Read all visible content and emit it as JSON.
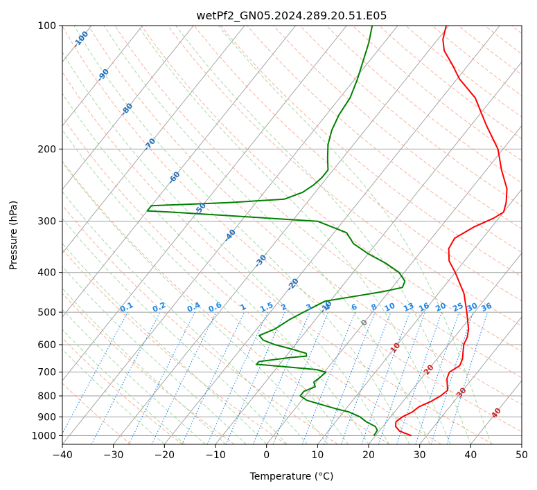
{
  "chart_data": {
    "type": "skew-t",
    "title": "wetPf2_GN05.2024.289.20.51.E05",
    "xlabel": "Temperature (°C)",
    "ylabel": "Pressure (hPa)",
    "xlim": [
      -40,
      50
    ],
    "ylim": [
      1050,
      100
    ],
    "log_y": true,
    "grid": true,
    "x_ticks": [
      -40,
      -30,
      -20,
      -10,
      0,
      10,
      20,
      30,
      40,
      50
    ],
    "x_tick_labels": [
      "−40",
      "−30",
      "−20",
      "−10",
      "0",
      "10",
      "20",
      "30",
      "40",
      "50"
    ],
    "y_ticks": [
      100,
      200,
      300,
      400,
      500,
      600,
      700,
      800,
      900,
      1000
    ],
    "y_tick_labels": [
      "100",
      "200",
      "300",
      "400",
      "500",
      "600",
      "700",
      "800",
      "900",
      "1000"
    ],
    "series": [
      {
        "color": "#ff0000",
        "points": [
          [
            1000,
            27.0
          ],
          [
            975,
            24.0
          ],
          [
            950,
            22.5
          ],
          [
            925,
            21.8
          ],
          [
            900,
            22.3
          ],
          [
            875,
            23.5
          ],
          [
            850,
            24.0
          ],
          [
            825,
            25.5
          ],
          [
            800,
            26.5
          ],
          [
            775,
            27.0
          ],
          [
            750,
            26.0
          ],
          [
            725,
            25.0
          ],
          [
            700,
            24.5
          ],
          [
            675,
            25.5
          ],
          [
            650,
            25.0
          ],
          [
            625,
            24.0
          ],
          [
            600,
            23.0
          ],
          [
            575,
            22.5
          ],
          [
            550,
            21.5
          ],
          [
            500,
            18.5
          ],
          [
            450,
            15.0
          ],
          [
            400,
            10.0
          ],
          [
            375,
            7.0
          ],
          [
            350,
            5.0
          ],
          [
            330,
            4.5
          ],
          [
            310,
            6.5
          ],
          [
            295,
            9.0
          ],
          [
            285,
            10.0
          ],
          [
            270,
            9.0
          ],
          [
            250,
            7.0
          ],
          [
            225,
            3.0
          ],
          [
            200,
            -1.0
          ],
          [
            175,
            -7.0
          ],
          [
            150,
            -13.5
          ],
          [
            135,
            -19.5
          ],
          [
            125,
            -23.0
          ],
          [
            115,
            -27.0
          ],
          [
            108,
            -29.0
          ],
          [
            100,
            -30.5
          ]
        ]
      },
      {
        "color": "#008000",
        "points": [
          [
            1000,
            19.7
          ],
          [
            970,
            19.5
          ],
          [
            950,
            18.5
          ],
          [
            925,
            16.0
          ],
          [
            900,
            14.0
          ],
          [
            875,
            11.0
          ],
          [
            860,
            8.0
          ],
          [
            840,
            4.5
          ],
          [
            820,
            1.0
          ],
          [
            800,
            -1.0
          ],
          [
            780,
            -1.0
          ],
          [
            760,
            0.5
          ],
          [
            740,
            -0.5
          ],
          [
            720,
            0.0
          ],
          [
            700,
            0.3
          ],
          [
            690,
            -2.0
          ],
          [
            680,
            -8.0
          ],
          [
            670,
            -14.5
          ],
          [
            660,
            -14.5
          ],
          [
            645,
            -9.0
          ],
          [
            640,
            -6.0
          ],
          [
            630,
            -6.5
          ],
          [
            615,
            -10.0
          ],
          [
            600,
            -14.0
          ],
          [
            585,
            -17.0
          ],
          [
            570,
            -18.5
          ],
          [
            550,
            -16.5
          ],
          [
            520,
            -15.0
          ],
          [
            500,
            -13.5
          ],
          [
            470,
            -11.0
          ],
          [
            455,
            -5.0
          ],
          [
            445,
            -1.0
          ],
          [
            435,
            2.0
          ],
          [
            420,
            1.5
          ],
          [
            400,
            -1.0
          ],
          [
            380,
            -5.0
          ],
          [
            360,
            -10.0
          ],
          [
            340,
            -14.5
          ],
          [
            320,
            -17.5
          ],
          [
            300,
            -25.0
          ],
          [
            285,
            -55.0
          ],
          [
            283,
            -60.0
          ],
          [
            275,
            -60.0
          ],
          [
            270,
            -45.0
          ],
          [
            265,
            -35.0
          ],
          [
            255,
            -32.5
          ],
          [
            245,
            -31.5
          ],
          [
            235,
            -31.0
          ],
          [
            225,
            -31.0
          ],
          [
            210,
            -33.0
          ],
          [
            195,
            -35.0
          ],
          [
            180,
            -36.5
          ],
          [
            165,
            -37.5
          ],
          [
            150,
            -38.0
          ],
          [
            135,
            -39.5
          ],
          [
            120,
            -41.5
          ],
          [
            110,
            -43.0
          ],
          [
            100,
            -45.0
          ]
        ]
      }
    ],
    "mixing_ratio_labels": [
      "0.1",
      "0.2",
      "0.4",
      "0.6",
      "1",
      "1.5",
      "2",
      "3",
      "4",
      "6",
      "8",
      "10",
      "13",
      "16",
      "20",
      "25",
      "30",
      "36"
    ],
    "dry_adiabat_labels": [
      "-100",
      "-90",
      "-80",
      "-70",
      "-60",
      "-50",
      "-40",
      "-30",
      "-20",
      "-10",
      "0",
      "10",
      "20",
      "30",
      "40"
    ]
  },
  "colors": {
    "temperature": "#ff0000",
    "dewpoint": "#008000",
    "isotherm": "#9e9e9e",
    "dry_adiabat": "#f4a58a",
    "moist_adiabat": "#8fcf8f",
    "mixing_ratio": "#1e88e5",
    "isobar": "#9e9e9e",
    "label_cold": "#1f6fbf",
    "label_zero": "#808080",
    "label_warm": "#cc2222"
  }
}
